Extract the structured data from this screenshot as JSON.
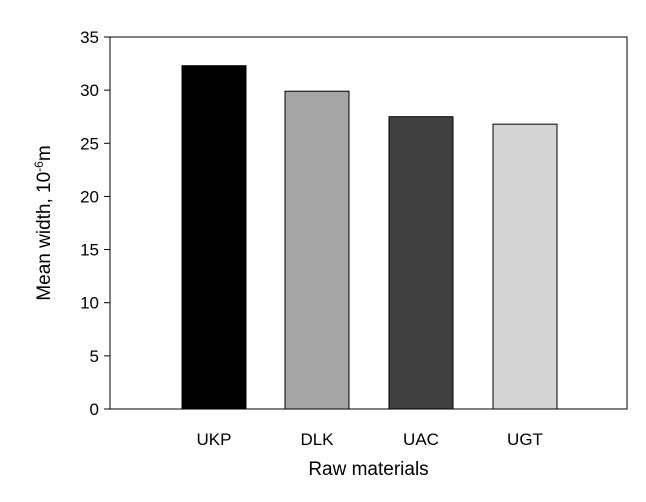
{
  "chart_data": {
    "type": "bar",
    "categories": [
      "UKP",
      "DLK",
      "UAC",
      "UGT"
    ],
    "values": [
      32.3,
      29.9,
      27.5,
      26.8
    ],
    "colors": [
      "#000000",
      "#a6a6a6",
      "#404040",
      "#d4d4d4"
    ],
    "xlabel": "Raw materials",
    "ylabel": {
      "prefix": "Mean width, 10",
      "superscript": "-6",
      "suffix": "m"
    },
    "ylim": [
      0,
      35
    ],
    "yticks": [
      0,
      5,
      10,
      15,
      20,
      25,
      30,
      35
    ],
    "grid": false,
    "legend": "none"
  }
}
